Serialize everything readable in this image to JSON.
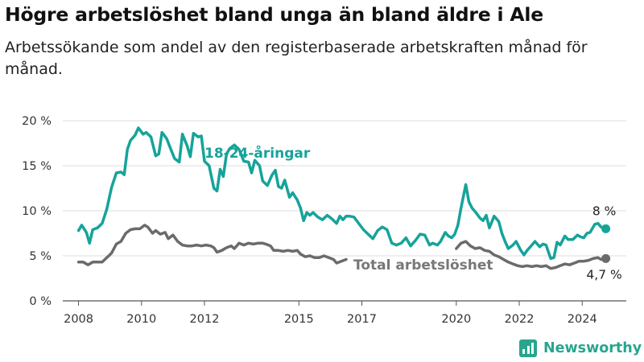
{
  "title": "Högre arbetslöshet bland unga än bland äldre i Ale",
  "subtitle": "Arbetssökande som andel av den registerbaserade arbetskraften månad för månad.",
  "brand": {
    "name": "Newsworthy",
    "icon": "newsworthy-logo-icon",
    "color": "#29a58e"
  },
  "chart_data": {
    "type": "line",
    "x_unit": "year (decimal)",
    "xlim": [
      2007.5,
      2025.4
    ],
    "ylim": [
      0,
      20
    ],
    "y_ticks": [
      {
        "value": 0,
        "label": "0 %"
      },
      {
        "value": 5,
        "label": "5 %"
      },
      {
        "value": 10,
        "label": "10 %"
      },
      {
        "value": 15,
        "label": "15 %"
      },
      {
        "value": 20,
        "label": "20 %"
      }
    ],
    "x_ticks": [
      {
        "value": 2008,
        "label": "2008"
      },
      {
        "value": 2010,
        "label": "2010"
      },
      {
        "value": 2012,
        "label": "2012"
      },
      {
        "value": 2015,
        "label": "2015"
      },
      {
        "value": 2017,
        "label": "2017"
      },
      {
        "value": 2020,
        "label": "2020"
      },
      {
        "value": 2022,
        "label": "2022"
      },
      {
        "value": 2024,
        "label": "2024"
      }
    ],
    "grid": "horizontal",
    "series": [
      {
        "name": "18-24-åringar",
        "color": "#16a39a",
        "end_label": "8 %",
        "points": [
          [
            2008.0,
            7.8
          ],
          [
            2008.1,
            8.4
          ],
          [
            2008.25,
            7.6
          ],
          [
            2008.35,
            6.4
          ],
          [
            2008.45,
            7.9
          ],
          [
            2008.6,
            8.1
          ],
          [
            2008.75,
            8.6
          ],
          [
            2008.9,
            10.2
          ],
          [
            2009.05,
            12.6
          ],
          [
            2009.2,
            14.2
          ],
          [
            2009.35,
            14.3
          ],
          [
            2009.45,
            14.0
          ],
          [
            2009.55,
            16.8
          ],
          [
            2009.65,
            17.8
          ],
          [
            2009.8,
            18.4
          ],
          [
            2009.9,
            19.2
          ],
          [
            2010.05,
            18.5
          ],
          [
            2010.15,
            18.7
          ],
          [
            2010.3,
            18.2
          ],
          [
            2010.45,
            16.1
          ],
          [
            2010.55,
            16.3
          ],
          [
            2010.65,
            18.7
          ],
          [
            2010.8,
            18.0
          ],
          [
            2010.9,
            17.1
          ],
          [
            2011.05,
            15.8
          ],
          [
            2011.2,
            15.4
          ],
          [
            2011.3,
            18.5
          ],
          [
            2011.45,
            17.2
          ],
          [
            2011.55,
            16.0
          ],
          [
            2011.65,
            18.6
          ],
          [
            2011.8,
            18.2
          ],
          [
            2011.9,
            18.3
          ],
          [
            2012.0,
            15.5
          ],
          [
            2012.15,
            15.0
          ],
          [
            2012.3,
            12.5
          ],
          [
            2012.4,
            12.2
          ],
          [
            2012.5,
            14.6
          ],
          [
            2012.6,
            13.8
          ],
          [
            2012.7,
            16.3
          ],
          [
            2012.8,
            16.9
          ],
          [
            2012.95,
            17.3
          ],
          [
            2013.1,
            16.8
          ],
          [
            2013.25,
            15.5
          ],
          [
            2013.4,
            15.4
          ],
          [
            2013.5,
            14.2
          ],
          [
            2013.6,
            15.6
          ],
          [
            2013.75,
            15.0
          ],
          [
            2013.85,
            13.3
          ],
          [
            2014.0,
            12.8
          ],
          [
            2014.15,
            14.0
          ],
          [
            2014.25,
            14.5
          ],
          [
            2014.35,
            12.7
          ],
          [
            2014.45,
            12.5
          ],
          [
            2014.55,
            13.4
          ],
          [
            2014.7,
            11.5
          ],
          [
            2014.8,
            12.0
          ],
          [
            2014.95,
            11.2
          ],
          [
            2015.05,
            10.3
          ],
          [
            2015.15,
            8.9
          ],
          [
            2015.25,
            9.8
          ],
          [
            2015.35,
            9.5
          ],
          [
            2015.45,
            9.8
          ],
          [
            2015.6,
            9.3
          ],
          [
            2015.75,
            9.0
          ],
          [
            2015.9,
            9.5
          ],
          [
            2016.05,
            9.1
          ],
          [
            2016.2,
            8.6
          ],
          [
            2016.3,
            9.4
          ],
          [
            2016.4,
            9.0
          ],
          [
            2016.5,
            9.4
          ],
          [
            2016.6,
            9.4
          ],
          [
            2016.75,
            9.3
          ],
          [
            2016.9,
            8.6
          ],
          [
            2017.05,
            7.9
          ],
          [
            2017.2,
            7.4
          ],
          [
            2017.35,
            6.9
          ],
          [
            2017.5,
            7.8
          ],
          [
            2017.65,
            8.2
          ],
          [
            2017.8,
            7.9
          ],
          [
            2017.95,
            6.4
          ],
          [
            2018.1,
            6.2
          ],
          [
            2018.25,
            6.4
          ],
          [
            2018.4,
            7.0
          ],
          [
            2018.55,
            6.1
          ],
          [
            2018.7,
            6.7
          ],
          [
            2018.85,
            7.4
          ],
          [
            2019.0,
            7.3
          ],
          [
            2019.15,
            6.2
          ],
          [
            2019.25,
            6.4
          ],
          [
            2019.4,
            6.2
          ],
          [
            2019.5,
            6.6
          ],
          [
            2019.65,
            7.6
          ],
          [
            2019.75,
            7.2
          ],
          [
            2019.85,
            7.0
          ],
          [
            2019.95,
            7.4
          ],
          [
            2020.05,
            8.4
          ],
          [
            2020.15,
            10.3
          ],
          [
            2020.3,
            12.9
          ],
          [
            2020.4,
            11.0
          ],
          [
            2020.5,
            10.3
          ],
          [
            2020.6,
            9.9
          ],
          [
            2020.75,
            9.2
          ],
          [
            2020.85,
            8.9
          ],
          [
            2020.95,
            9.5
          ],
          [
            2021.05,
            8.1
          ],
          [
            2021.2,
            9.4
          ],
          [
            2021.35,
            8.8
          ],
          [
            2021.45,
            7.5
          ],
          [
            2021.55,
            6.6
          ],
          [
            2021.65,
            5.8
          ],
          [
            2021.8,
            6.2
          ],
          [
            2021.9,
            6.6
          ],
          [
            2022.05,
            5.6
          ],
          [
            2022.15,
            5.1
          ],
          [
            2022.25,
            5.6
          ],
          [
            2022.4,
            6.2
          ],
          [
            2022.5,
            6.6
          ],
          [
            2022.65,
            6.0
          ],
          [
            2022.75,
            6.3
          ],
          [
            2022.85,
            6.2
          ],
          [
            2023.0,
            4.7
          ],
          [
            2023.1,
            4.8
          ],
          [
            2023.2,
            6.5
          ],
          [
            2023.3,
            6.2
          ],
          [
            2023.45,
            7.2
          ],
          [
            2023.55,
            6.8
          ],
          [
            2023.7,
            6.8
          ],
          [
            2023.85,
            7.3
          ],
          [
            2023.95,
            7.1
          ],
          [
            2024.05,
            7.0
          ],
          [
            2024.15,
            7.5
          ],
          [
            2024.25,
            7.6
          ],
          [
            2024.4,
            8.5
          ],
          [
            2024.5,
            8.6
          ],
          [
            2024.6,
            8.2
          ],
          [
            2024.75,
            8.0
          ]
        ]
      },
      {
        "name": "Total arbetslöshet",
        "color": "#6b6b6b",
        "end_label": "4,7 %",
        "points": [
          [
            2008.0,
            4.3
          ],
          [
            2008.15,
            4.3
          ],
          [
            2008.3,
            4.0
          ],
          [
            2008.45,
            4.3
          ],
          [
            2008.6,
            4.3
          ],
          [
            2008.75,
            4.3
          ],
          [
            2008.9,
            4.8
          ],
          [
            2009.05,
            5.3
          ],
          [
            2009.2,
            6.3
          ],
          [
            2009.35,
            6.6
          ],
          [
            2009.5,
            7.5
          ],
          [
            2009.65,
            7.9
          ],
          [
            2009.8,
            8.0
          ],
          [
            2009.95,
            8.0
          ],
          [
            2010.1,
            8.4
          ],
          [
            2010.2,
            8.2
          ],
          [
            2010.35,
            7.5
          ],
          [
            2010.45,
            7.8
          ],
          [
            2010.6,
            7.4
          ],
          [
            2010.75,
            7.6
          ],
          [
            2010.85,
            6.9
          ],
          [
            2011.0,
            7.3
          ],
          [
            2011.15,
            6.6
          ],
          [
            2011.3,
            6.2
          ],
          [
            2011.45,
            6.1
          ],
          [
            2011.6,
            6.1
          ],
          [
            2011.75,
            6.2
          ],
          [
            2011.9,
            6.1
          ],
          [
            2012.05,
            6.2
          ],
          [
            2012.2,
            6.1
          ],
          [
            2012.3,
            5.9
          ],
          [
            2012.4,
            5.4
          ],
          [
            2012.55,
            5.6
          ],
          [
            2012.7,
            5.9
          ],
          [
            2012.85,
            6.1
          ],
          [
            2012.95,
            5.8
          ],
          [
            2013.1,
            6.4
          ],
          [
            2013.25,
            6.2
          ],
          [
            2013.4,
            6.4
          ],
          [
            2013.55,
            6.3
          ],
          [
            2013.7,
            6.4
          ],
          [
            2013.85,
            6.4
          ],
          [
            2013.95,
            6.3
          ],
          [
            2014.1,
            6.1
          ],
          [
            2014.2,
            5.6
          ],
          [
            2014.35,
            5.6
          ],
          [
            2014.5,
            5.5
          ],
          [
            2014.65,
            5.6
          ],
          [
            2014.8,
            5.5
          ],
          [
            2014.95,
            5.6
          ],
          [
            2015.05,
            5.2
          ],
          [
            2015.2,
            4.9
          ],
          [
            2015.35,
            5.0
          ],
          [
            2015.5,
            4.8
          ],
          [
            2015.65,
            4.8
          ],
          [
            2015.8,
            5.0
          ],
          [
            2015.95,
            4.8
          ],
          [
            2016.1,
            4.6
          ],
          [
            2016.2,
            4.2
          ],
          [
            2016.35,
            4.4
          ],
          [
            2016.5,
            4.6
          ]
        ],
        "points_after_label": [
          [
            2020.0,
            5.8
          ],
          [
            2020.15,
            6.4
          ],
          [
            2020.3,
            6.6
          ],
          [
            2020.45,
            6.1
          ],
          [
            2020.6,
            5.8
          ],
          [
            2020.75,
            5.9
          ],
          [
            2020.9,
            5.6
          ],
          [
            2021.05,
            5.5
          ],
          [
            2021.2,
            5.1
          ],
          [
            2021.35,
            4.9
          ],
          [
            2021.5,
            4.6
          ],
          [
            2021.65,
            4.3
          ],
          [
            2021.8,
            4.1
          ],
          [
            2021.95,
            3.9
          ],
          [
            2022.1,
            3.8
          ],
          [
            2022.25,
            3.9
          ],
          [
            2022.4,
            3.8
          ],
          [
            2022.55,
            3.9
          ],
          [
            2022.7,
            3.8
          ],
          [
            2022.85,
            3.9
          ],
          [
            2023.0,
            3.6
          ],
          [
            2023.15,
            3.7
          ],
          [
            2023.3,
            3.9
          ],
          [
            2023.45,
            4.1
          ],
          [
            2023.6,
            4.0
          ],
          [
            2023.75,
            4.2
          ],
          [
            2023.9,
            4.4
          ],
          [
            2024.05,
            4.4
          ],
          [
            2024.2,
            4.5
          ],
          [
            2024.35,
            4.7
          ],
          [
            2024.5,
            4.8
          ],
          [
            2024.6,
            4.6
          ],
          [
            2024.75,
            4.7
          ]
        ]
      }
    ]
  }
}
